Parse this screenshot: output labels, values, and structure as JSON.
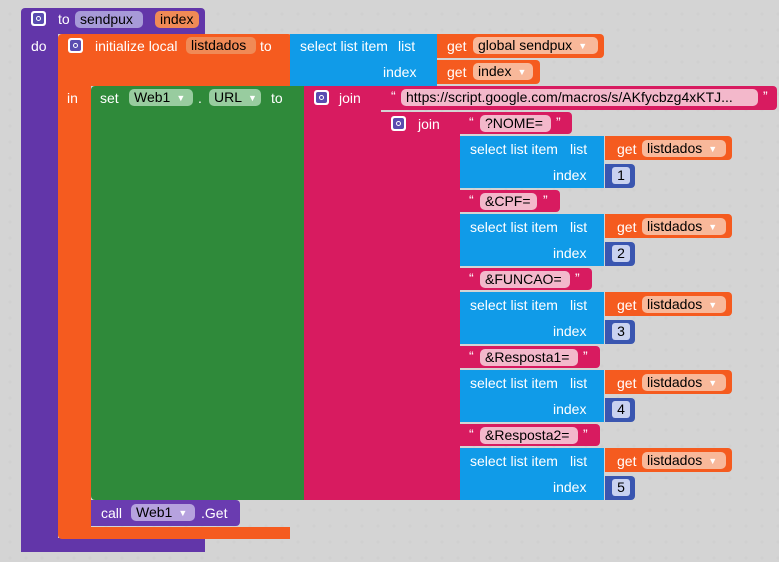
{
  "colors": {
    "procedure": "#6236a9",
    "local": "#f55b1f",
    "list": "#109be8",
    "component": "#2f8a3a",
    "text": "#d81b60",
    "math": "#3a56b0",
    "call": "#6a3cb0"
  },
  "procedure": {
    "keyword": "to",
    "name": "sendpux",
    "param": "index",
    "do_label": "do"
  },
  "local": {
    "label": "initialize local",
    "var": "listdados",
    "to_label": "to",
    "in_label": "in"
  },
  "select_item": {
    "label": "select list item",
    "list_label": "list",
    "index_label": "index"
  },
  "get": {
    "label": "get",
    "global_var": "global sendpux",
    "index_var": "index",
    "list_var": "listdados"
  },
  "set": {
    "label": "set",
    "component": "Web1",
    "dot": ".",
    "property": "URL",
    "to_label": "to"
  },
  "join": {
    "label": "join"
  },
  "texts": {
    "url": "https://script.google.com/macros/s/AKfycbzg4xKTJ...",
    "nome": "?NOME=",
    "cpf": "&CPF=",
    "funcao": "&FUNCAO=",
    "resp1": "&Resposta1=",
    "resp2": "&Resposta2="
  },
  "indexes": [
    "1",
    "2",
    "3",
    "4",
    "5"
  ],
  "call": {
    "label": "call",
    "component": "Web1",
    "method": ".Get"
  },
  "icons": {
    "mutator": "gear-icon",
    "dropdown": "dropdown-arrow-icon"
  }
}
